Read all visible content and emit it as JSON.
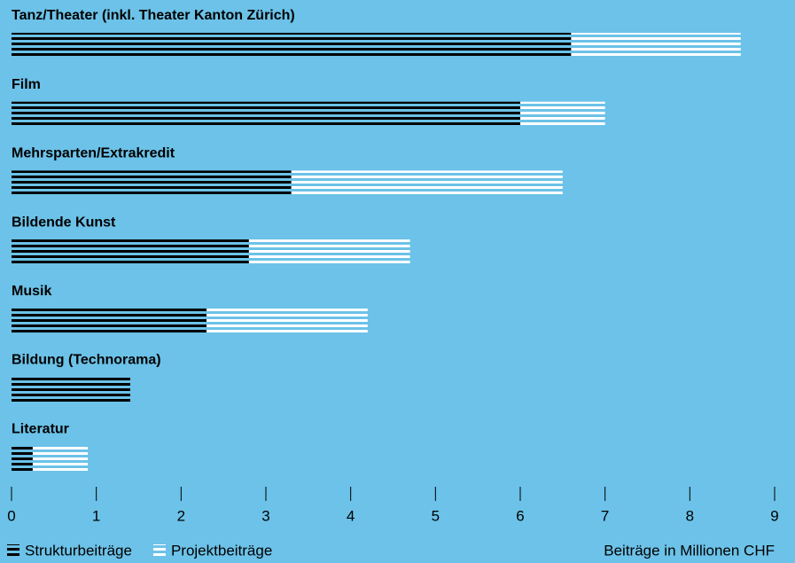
{
  "chart_data": {
    "type": "stacked_barh",
    "categories": [
      "Tanz/Theater (inkl. Theater Kanton Zürich)",
      "Film",
      "Mehrsparten/Extrakredit",
      "Bildende Kunst",
      "Musik",
      "Bildung (Technorama)",
      "Literatur"
    ],
    "series": [
      {
        "name": "Strukturbeiträge",
        "color": "#000000",
        "values": [
          6.6,
          6.0,
          3.3,
          2.8,
          2.3,
          1.4,
          0.25
        ]
      },
      {
        "name": "Projektbeiträge",
        "color": "#ffffff",
        "values": [
          2.0,
          1.0,
          3.2,
          1.9,
          1.9,
          0,
          0.65
        ]
      }
    ],
    "xlim": [
      0,
      9
    ],
    "xticks": [
      0,
      1,
      2,
      3,
      4,
      5,
      6,
      7,
      8,
      9
    ],
    "x_label": "Beiträge in Millionen CHF",
    "background": "#6cc2e8",
    "legend": "bottom-left"
  }
}
